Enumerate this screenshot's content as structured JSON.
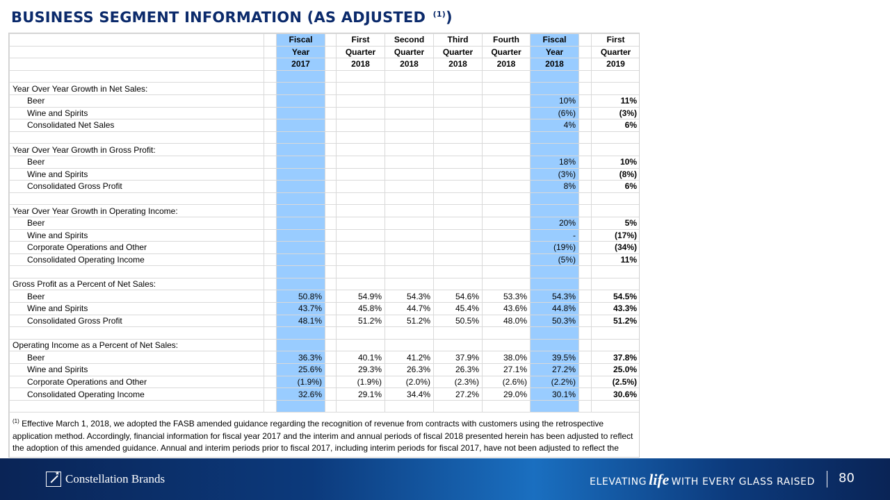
{
  "title": "BUSINESS SEGMENT INFORMATION (AS ADJUSTED ",
  "title_sup": "(1)",
  "title_end": ")",
  "header": {
    "line1": [
      "Fiscal",
      "First",
      "Second",
      "Third",
      "Fourth",
      "Fiscal",
      "First"
    ],
    "line2": [
      "Year",
      "Quarter",
      "Quarter",
      "Quarter",
      "Quarter",
      "Year",
      "Quarter"
    ],
    "line3": [
      "2017",
      "2018",
      "2018",
      "2018",
      "2018",
      "2018",
      "2019"
    ]
  },
  "rows": [
    {
      "label": "",
      "vals": [
        "",
        "",
        "",
        "",
        "",
        "",
        ""
      ]
    },
    {
      "label": "Year Over Year Growth in Net Sales:",
      "section": true,
      "vals": [
        "",
        "",
        "",
        "",
        "",
        "",
        ""
      ]
    },
    {
      "label": "Beer",
      "vals": [
        "",
        "",
        "",
        "",
        "",
        "10%",
        "11%"
      ]
    },
    {
      "label": "Wine and Spirits",
      "vals": [
        "",
        "",
        "",
        "",
        "",
        "(6%)",
        "(3%)"
      ]
    },
    {
      "label": "Consolidated Net Sales",
      "vals": [
        "",
        "",
        "",
        "",
        "",
        "4%",
        "6%"
      ]
    },
    {
      "label": "",
      "vals": [
        "",
        "",
        "",
        "",
        "",
        "",
        ""
      ]
    },
    {
      "label": "Year Over Year Growth in Gross Profit:",
      "section": true,
      "vals": [
        "",
        "",
        "",
        "",
        "",
        "",
        ""
      ]
    },
    {
      "label": "Beer",
      "vals": [
        "",
        "",
        "",
        "",
        "",
        "18%",
        "10%"
      ]
    },
    {
      "label": "Wine and Spirits",
      "vals": [
        "",
        "",
        "",
        "",
        "",
        "(3%)",
        "(8%)"
      ]
    },
    {
      "label": "Consolidated Gross Profit",
      "vals": [
        "",
        "",
        "",
        "",
        "",
        "8%",
        "6%"
      ]
    },
    {
      "label": "",
      "vals": [
        "",
        "",
        "",
        "",
        "",
        "",
        ""
      ]
    },
    {
      "label": "Year Over Year Growth in Operating Income:",
      "section": true,
      "vals": [
        "",
        "",
        "",
        "",
        "",
        "",
        ""
      ]
    },
    {
      "label": "Beer",
      "vals": [
        "",
        "",
        "",
        "",
        "",
        "20%",
        "5%"
      ]
    },
    {
      "label": "Wine and Spirits",
      "vals": [
        "",
        "",
        "",
        "",
        "",
        "-",
        "(17%)"
      ]
    },
    {
      "label": "Corporate Operations and Other",
      "vals": [
        "",
        "",
        "",
        "",
        "",
        "(19%)",
        "(34%)"
      ]
    },
    {
      "label": "Consolidated Operating Income",
      "vals": [
        "",
        "",
        "",
        "",
        "",
        "(5%)",
        "11%"
      ]
    },
    {
      "label": "",
      "vals": [
        "",
        "",
        "",
        "",
        "",
        "",
        ""
      ]
    },
    {
      "label": "Gross Profit as a Percent of Net Sales:",
      "section": true,
      "vals": [
        "",
        "",
        "",
        "",
        "",
        "",
        ""
      ]
    },
    {
      "label": "Beer",
      "vals": [
        "50.8%",
        "54.9%",
        "54.3%",
        "54.6%",
        "53.3%",
        "54.3%",
        "54.5%"
      ]
    },
    {
      "label": "Wine and Spirits",
      "vals": [
        "43.7%",
        "45.8%",
        "44.7%",
        "45.4%",
        "43.6%",
        "44.8%",
        "43.3%"
      ]
    },
    {
      "label": "Consolidated Gross Profit",
      "vals": [
        "48.1%",
        "51.2%",
        "51.2%",
        "50.5%",
        "48.0%",
        "50.3%",
        "51.2%"
      ]
    },
    {
      "label": "",
      "vals": [
        "",
        "",
        "",
        "",
        "",
        "",
        ""
      ]
    },
    {
      "label": "Operating Income as a Percent of Net Sales:",
      "section": true,
      "vals": [
        "",
        "",
        "",
        "",
        "",
        "",
        ""
      ]
    },
    {
      "label": "Beer",
      "vals": [
        "36.3%",
        "40.1%",
        "41.2%",
        "37.9%",
        "38.0%",
        "39.5%",
        "37.8%"
      ]
    },
    {
      "label": "Wine and Spirits",
      "vals": [
        "25.6%",
        "29.3%",
        "26.3%",
        "26.3%",
        "27.1%",
        "27.2%",
        "25.0%"
      ]
    },
    {
      "label": "Corporate Operations and Other",
      "vals": [
        "(1.9%)",
        "(1.9%)",
        "(2.0%)",
        "(2.3%)",
        "(2.6%)",
        "(2.2%)",
        "(2.5%)"
      ]
    },
    {
      "label": "Consolidated Operating Income",
      "vals": [
        "32.6%",
        "29.1%",
        "34.4%",
        "27.2%",
        "29.0%",
        "30.1%",
        "30.6%"
      ]
    },
    {
      "label": "",
      "vals": [
        "",
        "",
        "",
        "",
        "",
        "",
        ""
      ]
    }
  ],
  "footnote_marker": "(1)",
  "footnote": " Effective March 1, 2018, we adopted the FASB amended guidance regarding the recognition of revenue from contracts with customers using the retrospective application method. Accordingly, financial information for fiscal year 2017 and the interim and annual periods of fiscal 2018 presented herein has been adjusted to reflect the adoption of this amended guidance. Annual and interim periods prior to fiscal 2017, including interim periods for fiscal 2017, have not been adjusted to reflect the adoption of this amended guidance as the impact is not deemed material.",
  "footer": {
    "logo_text": "Constellation Brands",
    "tagline_pre": "ELEVATING",
    "tagline_life": "life",
    "tagline_post": "WITH EVERY GLASS RAISED",
    "page_number": "80"
  },
  "colors": {
    "highlight": "#99ccff",
    "title": "#0b2a6b",
    "footer_dark": "#0a2456",
    "footer_light": "#1a6fc0"
  }
}
